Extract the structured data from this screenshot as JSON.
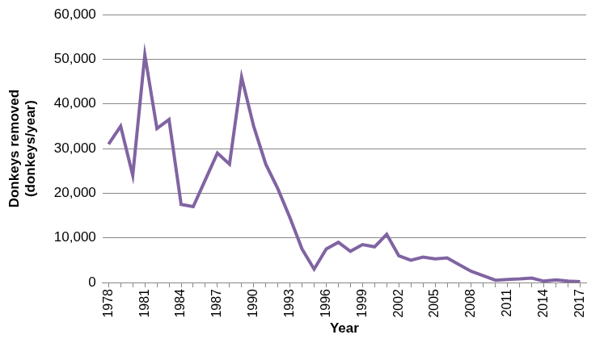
{
  "chart_data": {
    "type": "line",
    "x_label": "Year",
    "y_label": [
      "Donkeys removed",
      "(donkeys/year)"
    ],
    "categories": [
      "1978",
      null,
      null,
      "1981",
      null,
      null,
      "1984",
      null,
      null,
      "1987",
      null,
      null,
      "1990",
      null,
      null,
      "1993",
      null,
      null,
      "1996",
      null,
      null,
      "1999",
      null,
      null,
      "2002",
      null,
      null,
      "2005",
      null,
      null,
      "2008",
      null,
      null,
      "2011",
      null,
      null,
      "2014",
      null,
      null,
      "2017"
    ],
    "values": [
      31000,
      35000,
      24000,
      51000,
      34500,
      36500,
      17500,
      17000,
      23000,
      29000,
      26500,
      46000,
      35000,
      26500,
      21000,
      14500,
      7500,
      3000,
      7500,
      9000,
      7000,
      8500,
      8000,
      10800,
      6000,
      5000,
      5700,
      5300,
      5500,
      4000,
      2500,
      1500,
      500,
      700,
      800,
      1000,
      300,
      600,
      300,
      200
    ],
    "color": "#8064a2",
    "ylim": [
      0,
      60000
    ],
    "yticks": [
      0,
      {
        "value": 10000,
        "label": "10,000"
      },
      {
        "value": 20000,
        "label": "20,000"
      },
      {
        "value": 30000,
        "label": "30,000"
      },
      {
        "value": 40000,
        "label": "40,000"
      },
      {
        "value": 50000,
        "label": "50,000"
      },
      {
        "value": 60000,
        "label": "60,000"
      }
    ],
    "grid": true
  }
}
